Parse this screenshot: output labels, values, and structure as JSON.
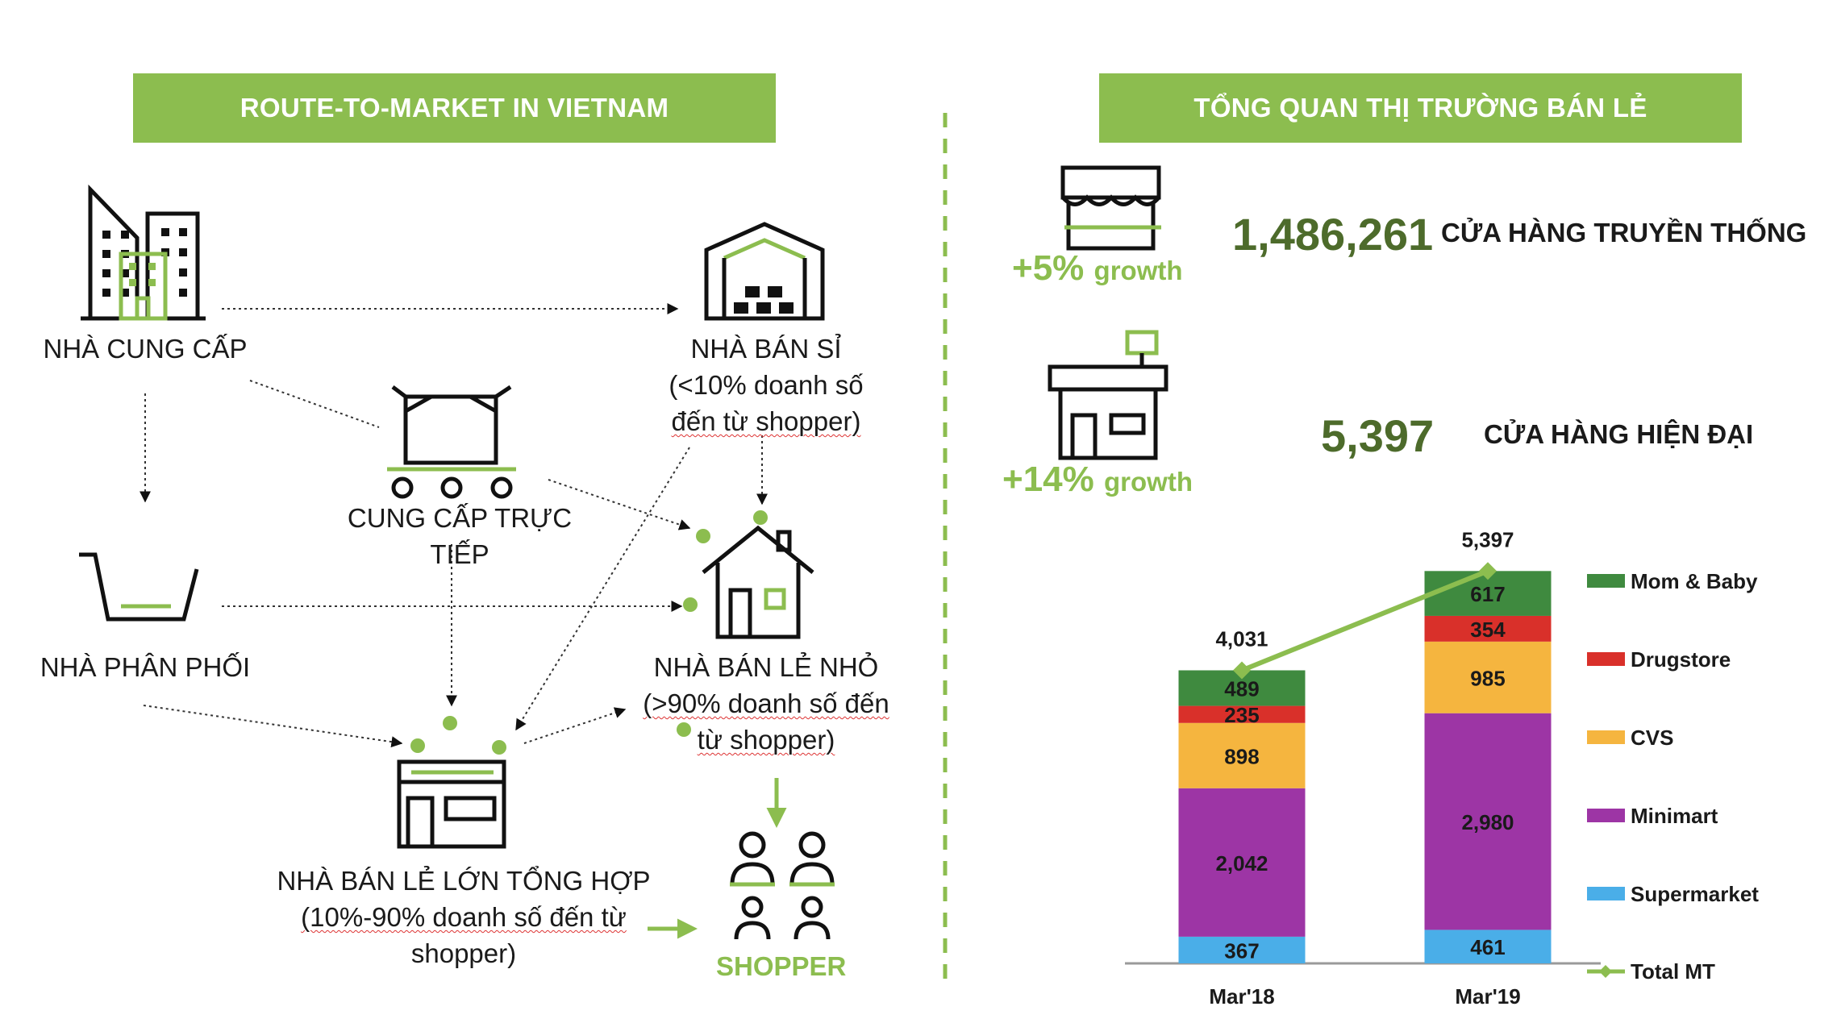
{
  "left_title": "ROUTE-TO-MARKET IN VIETNAM",
  "right_title": "TỔNG QUAN THỊ TRƯỜNG BÁN LẺ",
  "nodes": {
    "supplier": "NHÀ CUNG CẤP",
    "wholesaler": "NHÀ BÁN SỈ",
    "wholesaler_note_1": "(<10% doanh số",
    "wholesaler_note_2": "đến từ shopper)",
    "direct_supply": "CUNG CẤP TRỰC TIẾP",
    "distributor": "NHÀ PHÂN PHỐI",
    "small_retailer": "NHÀ BÁN LẺ NHỎ",
    "small_retailer_note_1": "(>90% doanh số đến",
    "small_retailer_note_2": "từ shopper)",
    "large_retailer": "NHÀ BÁN LẺ LỚN TỔNG HỢP",
    "large_retailer_note_1": "(10%-90% doanh số đến từ",
    "large_retailer_note_2": "shopper)",
    "shopper": "SHOPPER"
  },
  "overview": {
    "traditional": {
      "growth": "+5%",
      "growth_word": "growth",
      "count": "1,486,261",
      "label": "CỬA HÀNG TRUYỀN THỐNG"
    },
    "modern": {
      "growth": "+14%",
      "growth_word": "growth",
      "count": "5,397",
      "label": "CỬA HÀNG HIỆN ĐẠI"
    }
  },
  "colors": {
    "accent_green": "#8cbd4f",
    "dark_green": "#4d6b2b",
    "mom_baby": "#3f8a3f",
    "drugstore": "#d9302a",
    "cvs": "#f5b53f",
    "minimart": "#9d35a5",
    "supermarket": "#4aaee8",
    "total_mt": "#8cbd4f"
  },
  "chart_data": {
    "type": "bar",
    "stacked": true,
    "categories": [
      "Mar'18",
      "Mar'19"
    ],
    "series": [
      {
        "name": "Supermarket",
        "values": [
          367,
          461
        ],
        "color": "#4aaee8"
      },
      {
        "name": "Minimart",
        "values": [
          2042,
          2980
        ],
        "color": "#9d35a5"
      },
      {
        "name": "CVS",
        "values": [
          898,
          985
        ],
        "color": "#f5b53f"
      },
      {
        "name": "Drugstore",
        "values": [
          235,
          354
        ],
        "color": "#d9302a"
      },
      {
        "name": "Mom & Baby",
        "values": [
          489,
          617
        ],
        "color": "#3f8a3f"
      }
    ],
    "line_series": {
      "name": "Total MT",
      "values": [
        4031,
        5397
      ],
      "labels": [
        "4,031",
        "5,397"
      ],
      "color": "#8cbd4f"
    },
    "value_labels": {
      "Supermarket": [
        "367",
        "461"
      ],
      "Minimart": [
        "2,042",
        "2,980"
      ],
      "CVS": [
        "898",
        "985"
      ],
      "Drugstore": [
        "235",
        "354"
      ],
      "Mom & Baby": [
        "489",
        "617"
      ]
    },
    "legend_order": [
      "Mom & Baby",
      "Drugstore",
      "CVS",
      "Minimart",
      "Supermarket",
      "Total MT"
    ],
    "legend_position": "right",
    "ylim": [
      0,
      5600
    ],
    "grid": false
  }
}
